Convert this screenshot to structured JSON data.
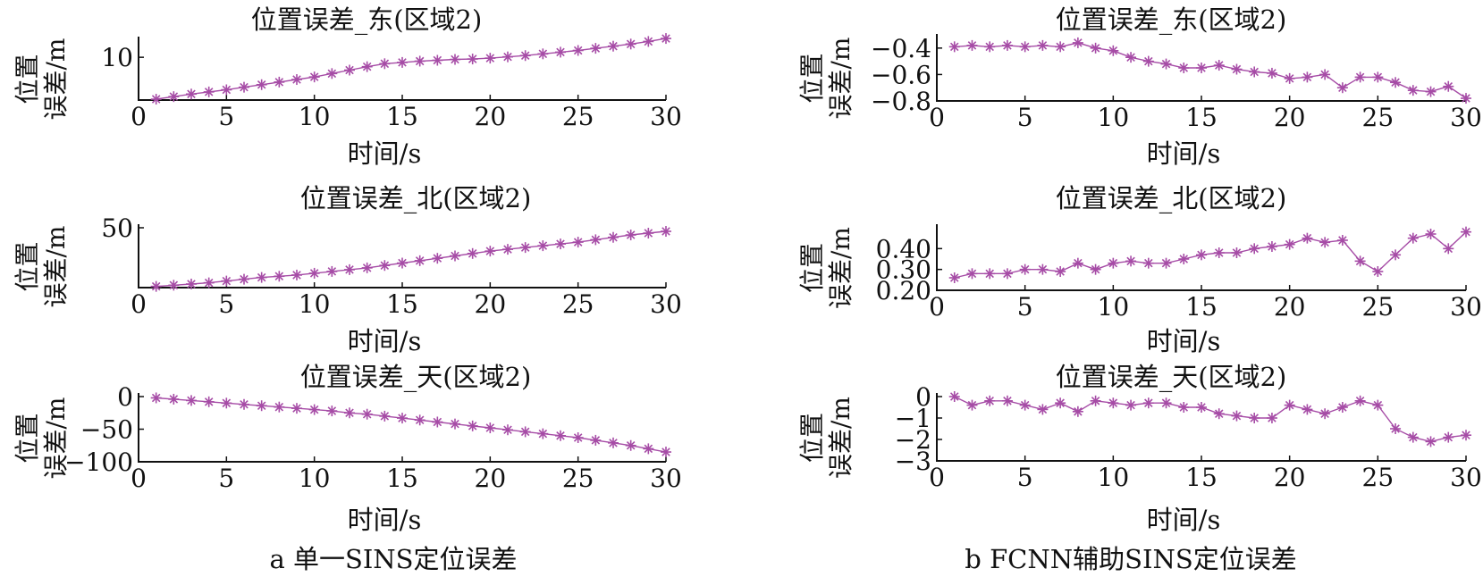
{
  "figure": {
    "captions": {
      "left": "a 单一SINS定位误差",
      "right": "b FCNN辅助SINS定位误差"
    },
    "series_color": "#a64ca6"
  },
  "chart_data": [
    {
      "type": "line",
      "panel": "a",
      "title": "位置误差_东(区域2)",
      "xlabel": "时间/s",
      "ylabel": [
        "位置",
        "误差/m"
      ],
      "xlim": [
        0,
        30
      ],
      "ylim": [
        0,
        14
      ],
      "xticks": [
        0,
        5,
        10,
        15,
        20,
        25,
        30
      ],
      "yticks": [
        10
      ],
      "ytick_labels": [
        "10"
      ],
      "x": [
        1,
        2,
        3,
        4,
        5,
        6,
        7,
        8,
        9,
        10,
        11,
        12,
        13,
        14,
        15,
        16,
        17,
        18,
        19,
        20,
        21,
        22,
        23,
        24,
        25,
        26,
        27,
        28,
        29,
        30
      ],
      "series": [
        {
          "values": [
            0.2,
            0.8,
            1.4,
            1.9,
            2.4,
            3.0,
            3.6,
            4.2,
            4.8,
            5.4,
            6.2,
            7.0,
            7.8,
            8.5,
            8.8,
            9.1,
            9.3,
            9.5,
            9.6,
            9.8,
            10.1,
            10.4,
            10.8,
            11.2,
            11.6,
            12.1,
            12.6,
            13.1,
            13.7,
            14.4
          ]
        }
      ]
    },
    {
      "type": "line",
      "panel": "a",
      "title": "位置误差_北(区域2)",
      "xlabel": "时间/s",
      "ylabel": [
        "位置",
        "误差/m"
      ],
      "xlim": [
        0,
        30
      ],
      "ylim": [
        0,
        50
      ],
      "xticks": [
        0,
        5,
        10,
        15,
        20,
        25,
        30
      ],
      "yticks": [
        50
      ],
      "ytick_labels": [
        "50"
      ],
      "x": [
        1,
        2,
        3,
        4,
        5,
        6,
        7,
        8,
        9,
        10,
        11,
        12,
        13,
        14,
        15,
        16,
        17,
        18,
        19,
        20,
        21,
        22,
        23,
        24,
        25,
        26,
        27,
        28,
        29,
        30
      ],
      "series": [
        {
          "values": [
            1.0,
            2.0,
            3.0,
            4.0,
            5.5,
            7.0,
            8.5,
            9.5,
            10.5,
            12.0,
            13.5,
            15.0,
            16.5,
            18.5,
            20.5,
            22.5,
            24.5,
            26.5,
            28.5,
            30.5,
            32.0,
            33.5,
            35.0,
            36.5,
            38.0,
            40.0,
            42.0,
            44.0,
            45.5,
            47.0
          ]
        }
      ]
    },
    {
      "type": "line",
      "panel": "a",
      "title": "位置误差_天(区域2)",
      "xlabel": "时间/s",
      "ylabel": [
        "位置",
        "误差/m"
      ],
      "xlim": [
        0,
        30
      ],
      "ylim": [
        -100,
        0
      ],
      "xticks": [
        0,
        5,
        10,
        15,
        20,
        25,
        30
      ],
      "yticks": [
        0,
        -50,
        -100
      ],
      "ytick_labels": [
        "0",
        "−50",
        "−100"
      ],
      "x": [
        1,
        2,
        3,
        4,
        5,
        6,
        7,
        8,
        9,
        10,
        11,
        12,
        13,
        14,
        15,
        16,
        17,
        18,
        19,
        20,
        21,
        22,
        23,
        24,
        25,
        26,
        27,
        28,
        29,
        30
      ],
      "series": [
        {
          "values": [
            -2,
            -4,
            -6,
            -8,
            -10,
            -12,
            -14,
            -16,
            -18,
            -20,
            -22,
            -25,
            -27,
            -30,
            -33,
            -36,
            -39,
            -42,
            -45,
            -48,
            -51,
            -54,
            -57,
            -60,
            -63,
            -67,
            -71,
            -75,
            -80,
            -85
          ]
        }
      ]
    },
    {
      "type": "line",
      "panel": "b",
      "title": "位置误差_东(区域2)",
      "xlabel": "时间/s",
      "ylabel": [
        "位置",
        "误差/m"
      ],
      "xlim": [
        0,
        30
      ],
      "ylim": [
        -0.8,
        -0.32
      ],
      "xticks": [
        0,
        5,
        10,
        15,
        20,
        25,
        30
      ],
      "yticks": [
        -0.4,
        -0.6,
        -0.8
      ],
      "ytick_labels": [
        "−0.4",
        "−0.6",
        "−0.8"
      ],
      "x": [
        1,
        2,
        3,
        4,
        5,
        6,
        7,
        8,
        9,
        10,
        11,
        12,
        13,
        14,
        15,
        16,
        17,
        18,
        19,
        20,
        21,
        22,
        23,
        24,
        25,
        26,
        27,
        28,
        29,
        30
      ],
      "series": [
        {
          "values": [
            -0.39,
            -0.38,
            -0.39,
            -0.38,
            -0.39,
            -0.38,
            -0.39,
            -0.36,
            -0.4,
            -0.42,
            -0.47,
            -0.5,
            -0.52,
            -0.55,
            -0.55,
            -0.53,
            -0.56,
            -0.58,
            -0.59,
            -0.63,
            -0.62,
            -0.6,
            -0.7,
            -0.62,
            -0.62,
            -0.66,
            -0.72,
            -0.73,
            -0.69,
            -0.78
          ]
        }
      ]
    },
    {
      "type": "line",
      "panel": "b",
      "title": "位置误差_北(区域2)",
      "xlabel": "时间/s",
      "ylabel": [
        "位置",
        "误差/m"
      ],
      "xlim": [
        0,
        30
      ],
      "ylim": [
        0.2,
        0.5
      ],
      "xticks": [
        0,
        5,
        10,
        15,
        20,
        25,
        30
      ],
      "yticks": [
        0.4,
        0.3,
        0.2
      ],
      "ytick_labels": [
        "0.40",
        "0.30",
        "0.20"
      ],
      "x": [
        1,
        2,
        3,
        4,
        5,
        6,
        7,
        8,
        9,
        10,
        11,
        12,
        13,
        14,
        15,
        16,
        17,
        18,
        19,
        20,
        21,
        22,
        23,
        24,
        25,
        26,
        27,
        28,
        29,
        30
      ],
      "series": [
        {
          "values": [
            0.26,
            0.28,
            0.28,
            0.28,
            0.3,
            0.3,
            0.29,
            0.33,
            0.3,
            0.33,
            0.34,
            0.33,
            0.33,
            0.35,
            0.37,
            0.38,
            0.38,
            0.4,
            0.41,
            0.42,
            0.45,
            0.43,
            0.44,
            0.34,
            0.29,
            0.37,
            0.45,
            0.47,
            0.4,
            0.48
          ]
        }
      ]
    },
    {
      "type": "line",
      "panel": "b",
      "title": "位置误差_天(区域2)",
      "xlabel": "时间/s",
      "ylabel": [
        "位置",
        "误差/m"
      ],
      "xlim": [
        0,
        30
      ],
      "ylim": [
        -3,
        0
      ],
      "xticks": [
        0,
        5,
        10,
        15,
        20,
        25,
        30
      ],
      "yticks": [
        0,
        -1,
        -2,
        -3
      ],
      "ytick_labels": [
        "0",
        "−1",
        "−2",
        "−3"
      ],
      "x": [
        1,
        2,
        3,
        4,
        5,
        6,
        7,
        8,
        9,
        10,
        11,
        12,
        13,
        14,
        15,
        16,
        17,
        18,
        19,
        20,
        21,
        22,
        23,
        24,
        25,
        26,
        27,
        28,
        29,
        30
      ],
      "series": [
        {
          "values": [
            0.0,
            -0.4,
            -0.2,
            -0.2,
            -0.4,
            -0.6,
            -0.3,
            -0.7,
            -0.2,
            -0.3,
            -0.4,
            -0.3,
            -0.3,
            -0.5,
            -0.5,
            -0.8,
            -0.9,
            -1.0,
            -1.0,
            -0.4,
            -0.6,
            -0.8,
            -0.5,
            -0.2,
            -0.4,
            -1.5,
            -1.9,
            -2.1,
            -1.9,
            -1.8
          ]
        }
      ]
    }
  ]
}
